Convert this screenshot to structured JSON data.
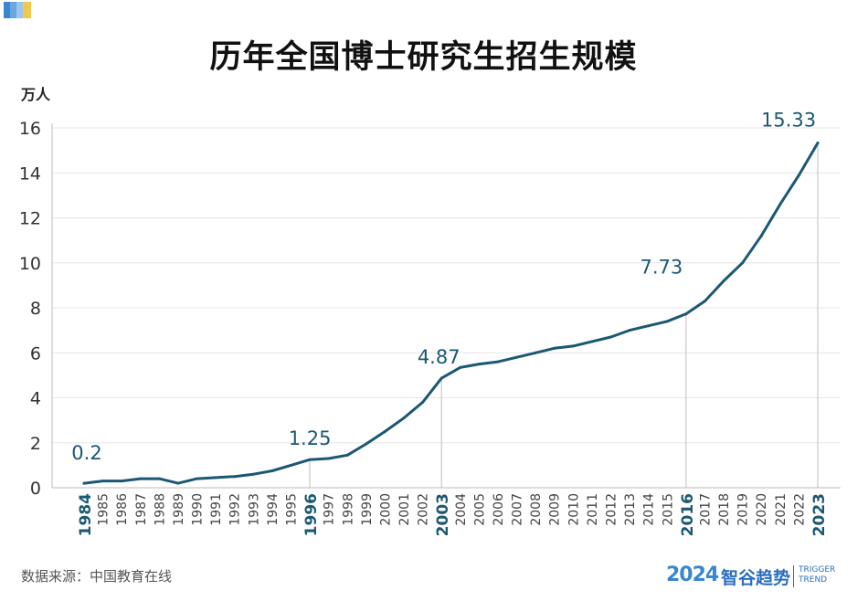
{
  "colors": {
    "line": "#1b5872",
    "ref": "#c8c8c8",
    "grid": "#e6e6e6",
    "text": "#333333",
    "accent": "#3a86d0"
  },
  "title": "历年全国博士研究生招生规模",
  "source": "数据来源：中国教育在线",
  "brand": {
    "year": "2024",
    "name": "智谷趋势",
    "en_line1": "TRIGGER",
    "en_line2": "TREND"
  },
  "chart_data": {
    "type": "line",
    "title": "历年全国博士研究生招生规模",
    "ylabel": "万人",
    "xlabel": "",
    "ylim": [
      0,
      16
    ],
    "yticks": [
      0,
      2,
      4,
      6,
      8,
      10,
      12,
      14,
      16
    ],
    "grid": true,
    "x": [
      "1984",
      "1985",
      "1986",
      "1987",
      "1988",
      "1989",
      "1990",
      "1991",
      "1992",
      "1993",
      "1994",
      "1995",
      "1996",
      "1997",
      "1998",
      "1999",
      "2000",
      "2001",
      "2002",
      "2003",
      "2004",
      "2005",
      "2006",
      "2007",
      "2008",
      "2009",
      "2010",
      "2011",
      "2012",
      "2013",
      "2014",
      "2015",
      "2016",
      "2017",
      "2018",
      "2019",
      "2020",
      "2021",
      "2022",
      "2023"
    ],
    "highlight_years": [
      "1984",
      "1996",
      "2003",
      "2016",
      "2023"
    ],
    "series": [
      {
        "values": [
          0.2,
          0.3,
          0.3,
          0.4,
          0.4,
          0.2,
          0.4,
          0.45,
          0.5,
          0.6,
          0.75,
          1.0,
          1.25,
          1.3,
          1.45,
          1.95,
          2.5,
          3.1,
          3.8,
          4.87,
          5.35,
          5.5,
          5.6,
          5.8,
          6.0,
          6.2,
          6.3,
          6.5,
          6.7,
          7.0,
          7.2,
          7.4,
          7.73,
          8.3,
          9.2,
          10.0,
          11.2,
          12.6,
          13.9,
          15.33
        ]
      }
    ],
    "annotations": [
      {
        "x": "1984",
        "label": "0.2"
      },
      {
        "x": "1996",
        "label": "1.25"
      },
      {
        "x": "2003",
        "label": "4.87"
      },
      {
        "x": "2016",
        "label": "7.73"
      },
      {
        "x": "2023",
        "label": "15.33"
      }
    ]
  }
}
